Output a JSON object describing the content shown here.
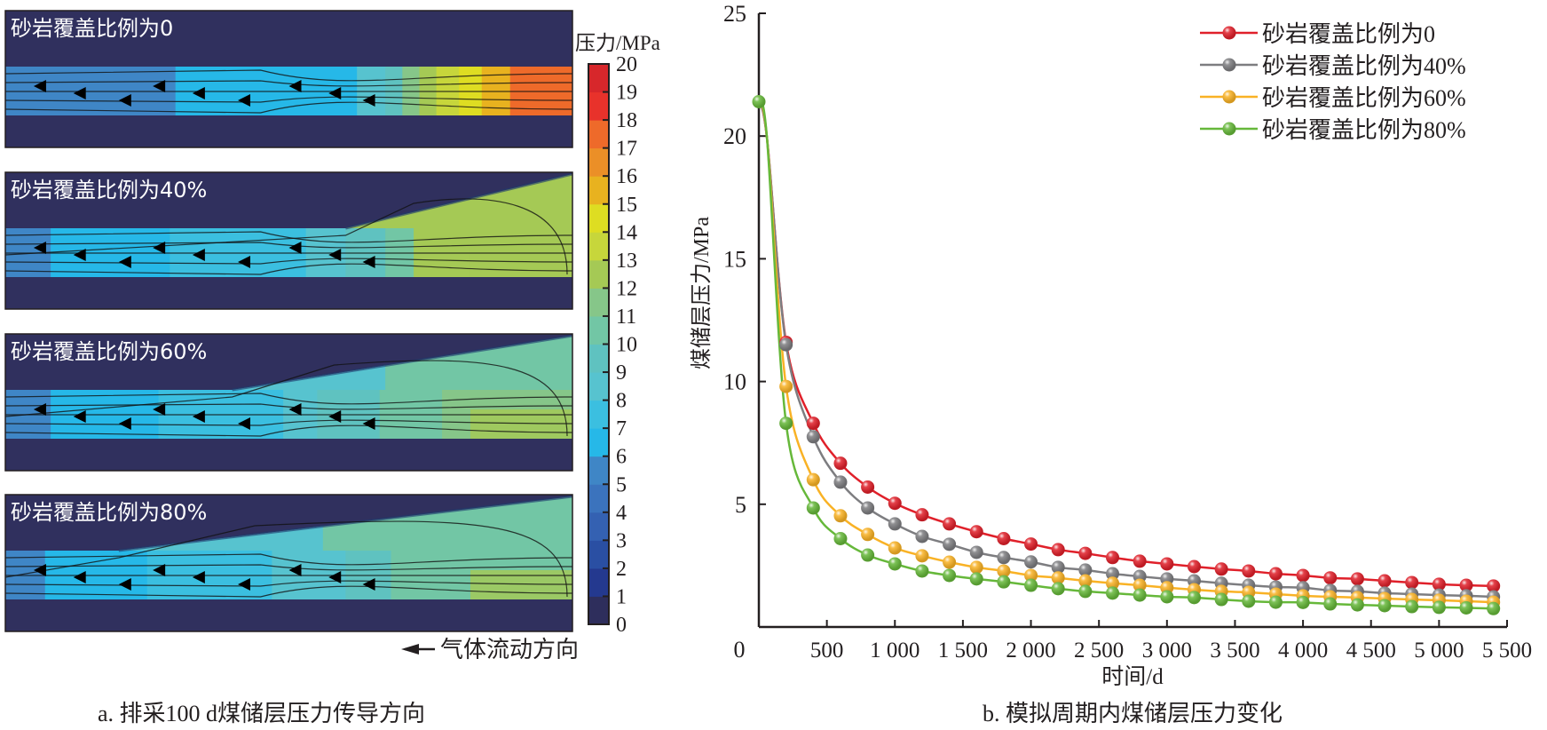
{
  "left_panel": {
    "caption": "a. 排采100 d煤储层压力传导方向",
    "flow_direction_label": "气体流动方向",
    "colorbar": {
      "title": "压力/MPa",
      "min": 0,
      "max": 20,
      "ticks": [
        "0",
        "1",
        "2",
        "3",
        "4",
        "5",
        "6",
        "7",
        "8",
        "9",
        "10",
        "11",
        "12",
        "13",
        "14",
        "15",
        "16",
        "17",
        "18",
        "19",
        "20"
      ],
      "colors": [
        "#2e2e5c",
        "#24398f",
        "#2a4fa3",
        "#3461b2",
        "#3b73bd",
        "#3f86c6",
        "#26b8e8",
        "#3bbfe0",
        "#57c3cf",
        "#5fc2c0",
        "#72c6a5",
        "#86c689",
        "#a5c955",
        "#c7d63b",
        "#dedd22",
        "#e8b21f",
        "#eb8f27",
        "#ee6a2a",
        "#e8322b",
        "#d7272b",
        "#a3262c"
      ]
    },
    "panels": [
      {
        "label": "砂岩覆盖比例为0",
        "sandstone_ratio": 0
      },
      {
        "label": "砂岩覆盖比例为40%",
        "sandstone_ratio": 40
      },
      {
        "label": "砂岩覆盖比例为60%",
        "sandstone_ratio": 60
      },
      {
        "label": "砂岩覆盖比例为80%",
        "sandstone_ratio": 80
      }
    ]
  },
  "chart_data": {
    "type": "line",
    "title": "b. 模拟周期内煤储层压力变化",
    "xlabel": "时间/d",
    "ylabel": "煤储层压力/MPa",
    "xlim": [
      0,
      5500
    ],
    "ylim": [
      0,
      25
    ],
    "xticks": [
      500,
      1000,
      1500,
      2000,
      2500,
      3000,
      3500,
      4000,
      4500,
      5000,
      5500
    ],
    "xtick_labels": [
      "500",
      "1 000",
      "1 500",
      "2 000",
      "2 500",
      "3 000",
      "3 500",
      "4 000",
      "4 500",
      "5 000",
      "5 500"
    ],
    "origin_label": "0",
    "yticks": [
      5,
      10,
      15,
      20,
      25
    ],
    "ytick_labels": [
      "5",
      "10",
      "15",
      "20",
      "25"
    ],
    "grid": false,
    "legend_position": "top-right",
    "x": [
      0,
      200,
      400,
      600,
      800,
      1000,
      1200,
      1400,
      1600,
      1800,
      2000,
      2200,
      2400,
      2600,
      2800,
      3000,
      3200,
      3400,
      3600,
      3800,
      4000,
      4200,
      4400,
      4600,
      4800,
      5000,
      5200,
      5400
    ],
    "series": [
      {
        "name": "砂岩覆盖比例为0",
        "color": "#e0202a",
        "values": [
          21.4,
          11.6,
          8.3,
          6.67,
          5.7,
          5.04,
          4.57,
          4.2,
          3.88,
          3.6,
          3.38,
          3.15,
          3.0,
          2.83,
          2.68,
          2.57,
          2.46,
          2.36,
          2.28,
          2.17,
          2.1,
          2.0,
          1.96,
          1.88,
          1.81,
          1.74,
          1.7,
          1.67
        ]
      },
      {
        "name": "砂岩覆盖比例为40%",
        "color": "#7d7d80",
        "values": [
          21.4,
          11.5,
          7.75,
          5.9,
          4.85,
          4.2,
          3.69,
          3.37,
          3.04,
          2.83,
          2.65,
          2.43,
          2.32,
          2.17,
          2.06,
          1.96,
          1.88,
          1.78,
          1.7,
          1.63,
          1.6,
          1.49,
          1.45,
          1.38,
          1.34,
          1.3,
          1.27,
          1.23
        ]
      },
      {
        "name": "砂岩覆盖比例为60%",
        "color": "#f9b225",
        "values": [
          21.4,
          9.8,
          6.0,
          4.53,
          3.77,
          3.22,
          2.9,
          2.64,
          2.43,
          2.28,
          2.1,
          2.0,
          1.88,
          1.78,
          1.7,
          1.6,
          1.52,
          1.45,
          1.41,
          1.34,
          1.27,
          1.23,
          1.2,
          1.16,
          1.12,
          1.09,
          1.05,
          1.01
        ]
      },
      {
        "name": "砂岩覆盖比例为80%",
        "color": "#66b83a",
        "values": [
          21.4,
          8.3,
          4.85,
          3.6,
          2.93,
          2.57,
          2.28,
          2.1,
          1.96,
          1.84,
          1.7,
          1.56,
          1.45,
          1.38,
          1.3,
          1.23,
          1.2,
          1.12,
          1.05,
          1.01,
          1.0,
          0.94,
          0.9,
          0.87,
          0.83,
          0.8,
          0.78,
          0.75
        ]
      }
    ]
  }
}
